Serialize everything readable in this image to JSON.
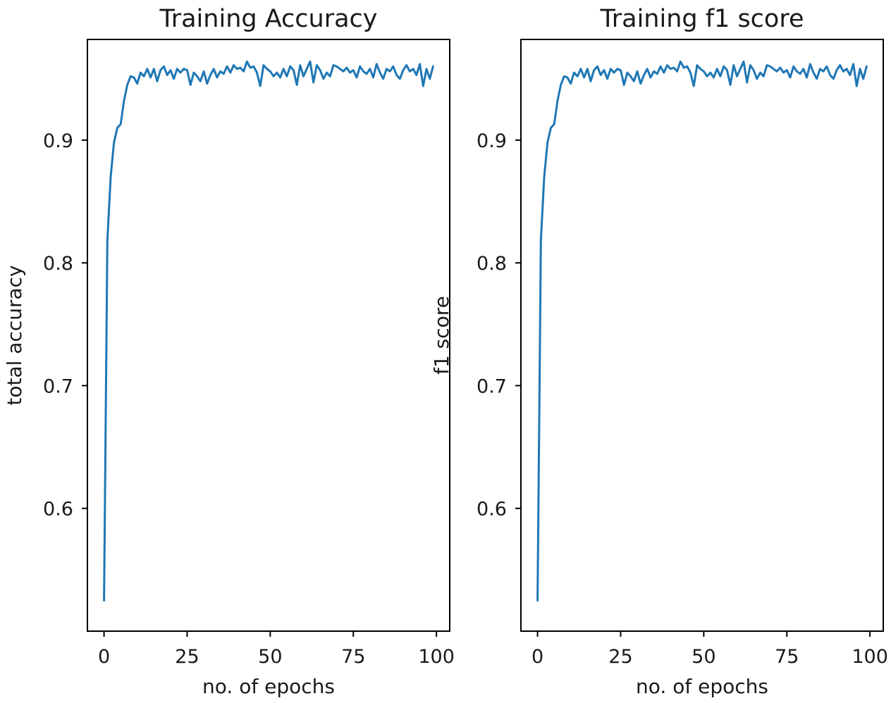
{
  "chart_data": [
    {
      "type": "line",
      "title": "Training Accuracy",
      "xlabel": "no. of epochs",
      "ylabel": "total accuracy",
      "xlim": [
        -5,
        104
      ],
      "ylim": [
        0.5,
        0.982
      ],
      "x_ticks": [
        0,
        25,
        50,
        75,
        100
      ],
      "y_ticks": [
        0.6,
        0.7,
        0.8,
        0.9
      ],
      "y_tick_labels": [
        "0.6",
        "0.7",
        "0.8",
        "0.9"
      ],
      "grid": false,
      "series": [
        {
          "color": "#1f77b4",
          "x": [
            0,
            1,
            2,
            3,
            4,
            5,
            6,
            7,
            8,
            9,
            10,
            11,
            12,
            13,
            14,
            15,
            16,
            17,
            18,
            19,
            20,
            21,
            22,
            23,
            24,
            25,
            26,
            27,
            28,
            29,
            30,
            31,
            32,
            33,
            34,
            35,
            36,
            37,
            38,
            39,
            40,
            41,
            42,
            43,
            44,
            45,
            46,
            47,
            48,
            49,
            50,
            51,
            52,
            53,
            54,
            55,
            56,
            57,
            58,
            59,
            60,
            61,
            62,
            63,
            64,
            65,
            66,
            67,
            68,
            69,
            70,
            71,
            72,
            73,
            74,
            75,
            76,
            77,
            78,
            79,
            80,
            81,
            82,
            83,
            84,
            85,
            86,
            87,
            88,
            89,
            90,
            91,
            92,
            93,
            94,
            95,
            96,
            97,
            98,
            99
          ],
          "values": [
            0.525,
            0.818,
            0.87,
            0.898,
            0.91,
            0.913,
            0.932,
            0.945,
            0.952,
            0.951,
            0.946,
            0.955,
            0.952,
            0.958,
            0.951,
            0.958,
            0.948,
            0.957,
            0.96,
            0.953,
            0.957,
            0.95,
            0.958,
            0.955,
            0.958,
            0.957,
            0.945,
            0.955,
            0.952,
            0.948,
            0.956,
            0.946,
            0.953,
            0.958,
            0.951,
            0.956,
            0.954,
            0.96,
            0.955,
            0.961,
            0.958,
            0.959,
            0.956,
            0.964,
            0.959,
            0.96,
            0.955,
            0.944,
            0.961,
            0.958,
            0.956,
            0.952,
            0.955,
            0.951,
            0.958,
            0.952,
            0.96,
            0.957,
            0.945,
            0.961,
            0.952,
            0.958,
            0.964,
            0.947,
            0.961,
            0.957,
            0.95,
            0.955,
            0.952,
            0.961,
            0.96,
            0.958,
            0.956,
            0.959,
            0.955,
            0.957,
            0.951,
            0.96,
            0.956,
            0.954,
            0.958,
            0.951,
            0.962,
            0.955,
            0.95,
            0.958,
            0.956,
            0.96,
            0.953,
            0.95,
            0.957,
            0.961,
            0.956,
            0.958,
            0.953,
            0.962,
            0.944,
            0.958,
            0.95,
            0.96
          ]
        }
      ]
    },
    {
      "type": "line",
      "title": "Training f1 score",
      "xlabel": "no. of epochs",
      "ylabel": "f1 score",
      "xlim": [
        -5,
        104
      ],
      "ylim": [
        0.5,
        0.982
      ],
      "x_ticks": [
        0,
        25,
        50,
        75,
        100
      ],
      "y_ticks": [
        0.6,
        0.7,
        0.8,
        0.9
      ],
      "y_tick_labels": [
        "0.6",
        "0.7",
        "0.8",
        "0.9"
      ],
      "grid": false,
      "series": [
        {
          "color": "#1f77b4",
          "x": [
            0,
            1,
            2,
            3,
            4,
            5,
            6,
            7,
            8,
            9,
            10,
            11,
            12,
            13,
            14,
            15,
            16,
            17,
            18,
            19,
            20,
            21,
            22,
            23,
            24,
            25,
            26,
            27,
            28,
            29,
            30,
            31,
            32,
            33,
            34,
            35,
            36,
            37,
            38,
            39,
            40,
            41,
            42,
            43,
            44,
            45,
            46,
            47,
            48,
            49,
            50,
            51,
            52,
            53,
            54,
            55,
            56,
            57,
            58,
            59,
            60,
            61,
            62,
            63,
            64,
            65,
            66,
            67,
            68,
            69,
            70,
            71,
            72,
            73,
            74,
            75,
            76,
            77,
            78,
            79,
            80,
            81,
            82,
            83,
            84,
            85,
            86,
            87,
            88,
            89,
            90,
            91,
            92,
            93,
            94,
            95,
            96,
            97,
            98,
            99
          ],
          "values": [
            0.525,
            0.818,
            0.87,
            0.898,
            0.91,
            0.913,
            0.932,
            0.945,
            0.952,
            0.951,
            0.946,
            0.955,
            0.952,
            0.958,
            0.951,
            0.958,
            0.948,
            0.957,
            0.96,
            0.953,
            0.957,
            0.95,
            0.958,
            0.955,
            0.958,
            0.957,
            0.945,
            0.955,
            0.952,
            0.948,
            0.956,
            0.946,
            0.953,
            0.958,
            0.951,
            0.956,
            0.954,
            0.96,
            0.955,
            0.961,
            0.958,
            0.959,
            0.956,
            0.964,
            0.959,
            0.96,
            0.955,
            0.944,
            0.961,
            0.958,
            0.956,
            0.952,
            0.955,
            0.951,
            0.958,
            0.952,
            0.96,
            0.957,
            0.945,
            0.961,
            0.952,
            0.958,
            0.964,
            0.947,
            0.961,
            0.957,
            0.95,
            0.955,
            0.952,
            0.961,
            0.96,
            0.958,
            0.956,
            0.959,
            0.955,
            0.957,
            0.951,
            0.96,
            0.956,
            0.954,
            0.958,
            0.951,
            0.962,
            0.955,
            0.95,
            0.958,
            0.956,
            0.96,
            0.953,
            0.95,
            0.957,
            0.961,
            0.956,
            0.958,
            0.953,
            0.962,
            0.944,
            0.958,
            0.95,
            0.96
          ]
        }
      ]
    }
  ]
}
